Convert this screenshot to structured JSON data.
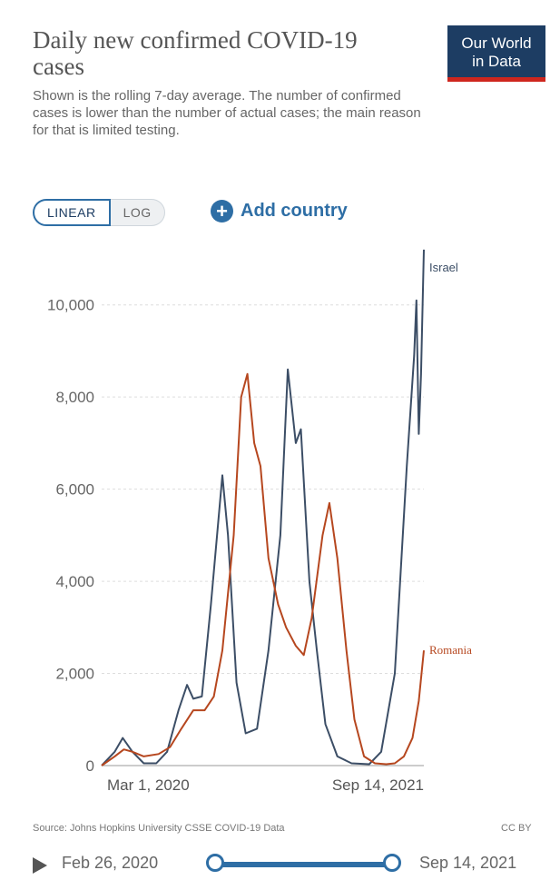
{
  "header": {
    "title": "Daily new confirmed COVID-19 cases",
    "subtitle": "Shown is the rolling 7-day average. The number of confirmed cases is lower than the number of actual cases; the main reason for that is limited testing.",
    "logo_line1": "Our World",
    "logo_line2": "in Data"
  },
  "controls": {
    "linear_label": "LINEAR",
    "log_label": "LOG",
    "add_country_label": "Add country"
  },
  "footer": {
    "source": "Source: Johns Hopkins University CSSE COVID-19 Data",
    "license": "CC BY"
  },
  "timeline": {
    "start_date": "Feb 26, 2020",
    "end_date": "Sep 14, 2021"
  },
  "colors": {
    "israel": "#3c4e66",
    "romania": "#b6471f",
    "accent": "#2e6ea5",
    "grid": "#dddddd"
  },
  "chart_data": {
    "type": "line",
    "title": "Daily new confirmed COVID-19 cases",
    "x_tick_labels": [
      "Mar 1, 2020",
      "Sep 14, 2021"
    ],
    "y_ticks": [
      0,
      2000,
      4000,
      6000,
      8000,
      10000
    ],
    "y_tick_labels": [
      "0",
      "2,000",
      "4,000",
      "6,000",
      "8,000",
      "10,000"
    ],
    "ylim": [
      0,
      11000
    ],
    "xlim": [
      "2020-02-26",
      "2021-09-14"
    ],
    "grid": true,
    "series": [
      {
        "name": "Israel",
        "color": "#3c4e66",
        "points": [
          [
            "2020-02-26",
            0
          ],
          [
            "2020-03-20",
            300
          ],
          [
            "2020-04-03",
            600
          ],
          [
            "2020-04-20",
            300
          ],
          [
            "2020-05-10",
            50
          ],
          [
            "2020-06-01",
            50
          ],
          [
            "2020-06-20",
            300
          ],
          [
            "2020-07-10",
            1200
          ],
          [
            "2020-07-25",
            1750
          ],
          [
            "2020-08-05",
            1450
          ],
          [
            "2020-08-20",
            1500
          ],
          [
            "2020-09-05",
            3500
          ],
          [
            "2020-09-25",
            6300
          ],
          [
            "2020-10-05",
            5000
          ],
          [
            "2020-10-20",
            1800
          ],
          [
            "2020-11-05",
            700
          ],
          [
            "2020-11-25",
            800
          ],
          [
            "2020-12-15",
            2500
          ],
          [
            "2021-01-05",
            5000
          ],
          [
            "2021-01-18",
            8600
          ],
          [
            "2021-02-01",
            7000
          ],
          [
            "2021-02-10",
            7300
          ],
          [
            "2021-02-25",
            4000
          ],
          [
            "2021-03-10",
            2500
          ],
          [
            "2021-03-25",
            900
          ],
          [
            "2021-04-15",
            200
          ],
          [
            "2021-05-10",
            50
          ],
          [
            "2021-06-10",
            30
          ],
          [
            "2021-07-01",
            300
          ],
          [
            "2021-07-25",
            2000
          ],
          [
            "2021-08-15",
            6500
          ],
          [
            "2021-08-28",
            8900
          ],
          [
            "2021-09-01",
            10100
          ],
          [
            "2021-09-05",
            7200
          ],
          [
            "2021-09-09",
            8500
          ],
          [
            "2021-09-14",
            11200
          ]
        ]
      },
      {
        "name": "Romania",
        "color": "#b6471f",
        "points": [
          [
            "2020-02-26",
            0
          ],
          [
            "2020-03-20",
            200
          ],
          [
            "2020-04-05",
            350
          ],
          [
            "2020-04-20",
            300
          ],
          [
            "2020-05-10",
            200
          ],
          [
            "2020-06-05",
            250
          ],
          [
            "2020-06-25",
            400
          ],
          [
            "2020-07-15",
            800
          ],
          [
            "2020-08-05",
            1200
          ],
          [
            "2020-08-25",
            1200
          ],
          [
            "2020-09-10",
            1500
          ],
          [
            "2020-09-25",
            2500
          ],
          [
            "2020-10-15",
            5000
          ],
          [
            "2020-10-28",
            8000
          ],
          [
            "2020-11-08",
            8500
          ],
          [
            "2020-11-20",
            7000
          ],
          [
            "2020-12-01",
            6500
          ],
          [
            "2020-12-15",
            4500
          ],
          [
            "2021-01-01",
            3500
          ],
          [
            "2021-01-15",
            3000
          ],
          [
            "2021-02-01",
            2600
          ],
          [
            "2021-02-15",
            2400
          ],
          [
            "2021-03-01",
            3200
          ],
          [
            "2021-03-20",
            5000
          ],
          [
            "2021-04-01",
            5700
          ],
          [
            "2021-04-15",
            4500
          ],
          [
            "2021-05-01",
            2500
          ],
          [
            "2021-05-15",
            1000
          ],
          [
            "2021-06-01",
            200
          ],
          [
            "2021-06-20",
            50
          ],
          [
            "2021-07-10",
            30
          ],
          [
            "2021-07-25",
            50
          ],
          [
            "2021-08-10",
            200
          ],
          [
            "2021-08-25",
            600
          ],
          [
            "2021-09-05",
            1400
          ],
          [
            "2021-09-14",
            2500
          ]
        ]
      }
    ]
  }
}
